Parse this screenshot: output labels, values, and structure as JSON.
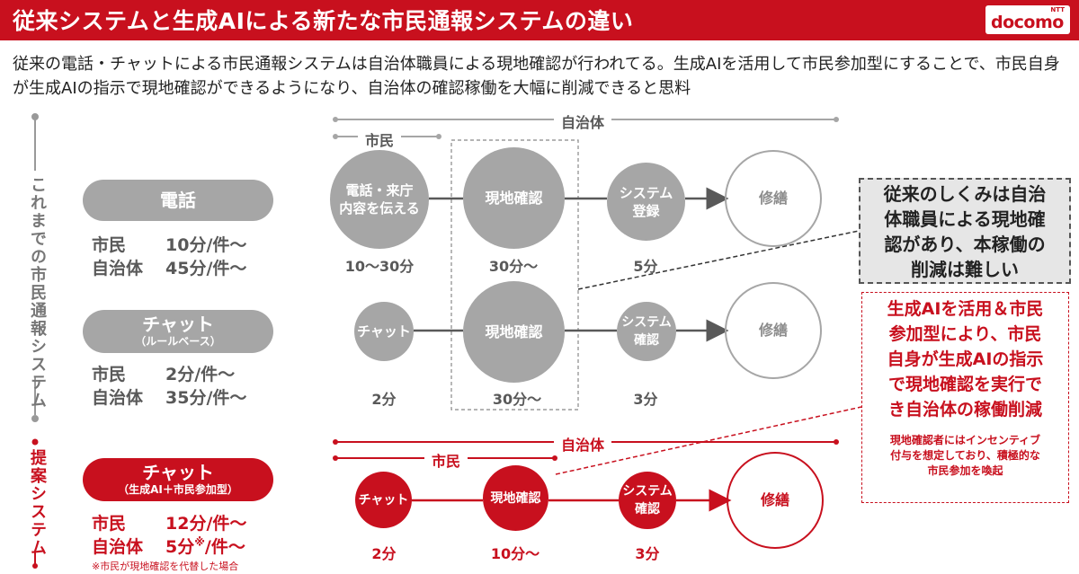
{
  "header": {
    "title": "従来システムと生成AIによる新たな市民通報システムの違い",
    "logo_small": "NTT",
    "logo": "docomo"
  },
  "intro": "従来の電話・チャットによる市民通報システムは自治体職員による現地確認が行われてる。生成AIを活用して市民参加型にすることで、市民自身が生成AIの指示で現地確認ができるようになり、自治体の確認稼働を大幅に削減できると思料",
  "left": {
    "existing_label": "これまでの市民通報システム",
    "proposed_label": "提案システム",
    "phone": {
      "title": "電話",
      "citizen": "市民",
      "citizen_time": "10分/件～",
      "gov": "自治体",
      "gov_time": "45分/件～"
    },
    "chat": {
      "title": "チャット",
      "subtitle": "（ルールベース）",
      "citizen": "市民",
      "citizen_time": "2分/件～",
      "gov": "自治体",
      "gov_time": "35分/件～"
    },
    "ai_chat": {
      "title": "チャット",
      "subtitle": "（生成AI＋市民参加型）",
      "citizen": "市民",
      "citizen_time": "12分/件～",
      "gov": "自治体",
      "gov_time": "5分",
      "gov_mark": "※",
      "gov_suffix": "/件～",
      "footnote": "※市民が現地確認を代替した場合"
    }
  },
  "flows": {
    "top_range_gov": "自治体",
    "top_range_citizen": "市民",
    "row1": {
      "steps": [
        "電話・来庁\n内容を伝える",
        "現地確認",
        "システム\n登録",
        "修繕"
      ],
      "times": [
        "10～30分",
        "30分～",
        "5分"
      ]
    },
    "row2": {
      "steps": [
        "チャット",
        "現地確認",
        "システム\n確認",
        "修繕"
      ],
      "times": [
        "2分",
        "30分～",
        "3分"
      ]
    },
    "row3_range_gov": "自治体",
    "row3_range_citizen": "市民",
    "row3": {
      "steps": [
        "チャット",
        "現地確認",
        "システム\n確認",
        "修繕"
      ],
      "times": [
        "2分",
        "10分～",
        "3分"
      ]
    }
  },
  "callouts": {
    "gray": "従来のしくみは自治体職員による現地確認があり、本稼働の削減は難しい",
    "gray_lines": [
      "従来のしくみは自治",
      "体職員による現地確",
      "認があり、本稼働の",
      "削減は難しい"
    ],
    "red_lines": [
      "生成AIを活用＆市民",
      "参加型により、市民",
      "自身が生成AIの指示",
      "で現地確認を実行で",
      "き自治体の稼働削減"
    ],
    "red_small_lines": [
      "現地確認者にはインセンティブ",
      "付与を想定しており、積極的な",
      "市民参加を喚起"
    ]
  },
  "colors": {
    "brand_red": "#c8101e",
    "gray": "#a6a6a6",
    "dark_gray": "#595959"
  }
}
